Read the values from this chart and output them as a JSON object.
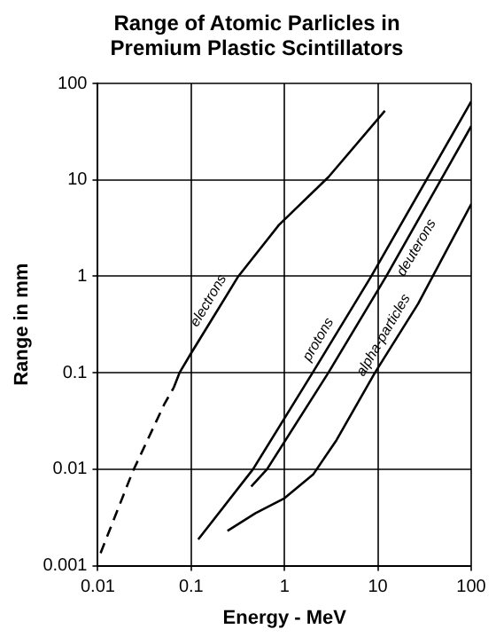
{
  "chart_data": {
    "type": "line",
    "title": "Range of Atomic Parlicles in Premium Plastic Scintillators",
    "xlabel": "Energy - MeV",
    "ylabel": "Range in mm",
    "log": "xy",
    "grid": true,
    "legend": false,
    "marker": "none",
    "xlim": [
      0.01,
      100
    ],
    "xticks": [
      0.01,
      0.1,
      1,
      10,
      100
    ],
    "ylim": [
      0.001,
      100
    ],
    "yticks": [
      0.001,
      0.01,
      0.1,
      1,
      10,
      100
    ],
    "series": [
      {
        "color": "#000000",
        "line_style": "dashed",
        "x": [
          0.0107,
          0.0237,
          0.052,
          0.065
        ],
        "values": [
          0.00135,
          0.0095,
          0.048,
          0.07
        ]
      },
      {
        "color": "#000000",
        "line_style": "solid",
        "x": [
          0.065,
          0.075,
          0.1,
          0.32,
          0.87,
          2.96,
          11.9
        ],
        "values": [
          0.07,
          0.1,
          0.16,
          1.0,
          3.4,
          10.7,
          52
        ]
      },
      {
        "color": "#000000",
        "line_style": "solid",
        "x": [
          0.119,
          0.46,
          2.0,
          8.5,
          100
        ],
        "values": [
          0.00187,
          0.01,
          0.1,
          1,
          65
        ]
      },
      {
        "color": "#000000",
        "line_style": "solid",
        "x": [
          0.44,
          0.65,
          2.95,
          12.3,
          100
        ],
        "values": [
          0.0066,
          0.01,
          0.1,
          1,
          36
        ]
      },
      {
        "color": "#000000",
        "line_style": "solid",
        "x": [
          0.245,
          0.49,
          1,
          2.04,
          3.6,
          9.3,
          27,
          100
        ],
        "values": [
          0.0023,
          0.0035,
          0.005,
          0.0089,
          0.02,
          0.1,
          0.52,
          5.6
        ]
      }
    ],
    "annotations": [
      {
        "text": "electrons",
        "x": 0.2,
        "y": 0.48
      },
      {
        "text": "protons",
        "x": 3,
        "y": 0.19
      },
      {
        "text": "deuterons",
        "x": 20,
        "y": 2.3
      },
      {
        "text": "alpha-particles",
        "x": 15,
        "y": 0.21
      }
    ]
  }
}
